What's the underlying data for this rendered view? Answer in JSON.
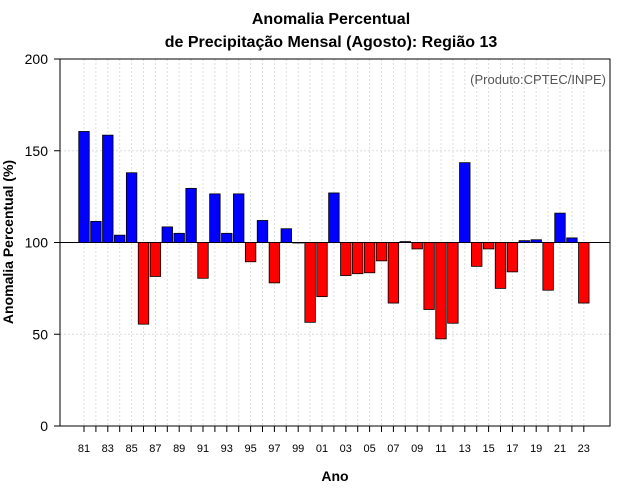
{
  "chart_data": {
    "type": "bar",
    "title_line1": "Anomalia Percentual",
    "title_line2": "de Precipitação Mensal (Agosto): Região 13",
    "xlabel": "Ano",
    "ylabel": "Anomalia Percentual (%)",
    "source": "(Produto:CPTEC/INPE)",
    "ylim": [
      0,
      200
    ],
    "yticks": [
      0,
      50,
      100,
      150,
      200
    ],
    "baseline": 100,
    "grid": true,
    "colors": {
      "above": "#0000ff",
      "below": "#ff0000"
    },
    "categories": [
      "81",
      "82",
      "83",
      "84",
      "85",
      "86",
      "87",
      "88",
      "89",
      "90",
      "91",
      "92",
      "93",
      "94",
      "95",
      "96",
      "97",
      "98",
      "99",
      "00",
      "01",
      "02",
      "03",
      "04",
      "05",
      "06",
      "07",
      "08",
      "09",
      "10",
      "11",
      "12",
      "13",
      "14",
      "15",
      "16",
      "17",
      "18",
      "19",
      "20",
      "21",
      "22",
      "23"
    ],
    "xtick_labels": [
      "81",
      "83",
      "85",
      "87",
      "89",
      "91",
      "93",
      "95",
      "97",
      "99",
      "01",
      "03",
      "05",
      "07",
      "09",
      "11",
      "13",
      "15",
      "17",
      "19",
      "21",
      "23"
    ],
    "values": [
      160.5,
      111.5,
      158.5,
      104,
      138,
      55.5,
      81.5,
      108.5,
      105,
      129.5,
      80.5,
      126.5,
      105,
      126.5,
      89.5,
      112,
      78,
      107.5,
      100,
      56.5,
      70.5,
      127,
      82,
      83,
      83.5,
      90,
      67,
      100.5,
      96.5,
      63.5,
      47.5,
      56,
      143.5,
      87,
      96.5,
      75,
      84,
      101,
      101.5,
      74,
      116,
      102.5,
      67
    ]
  }
}
